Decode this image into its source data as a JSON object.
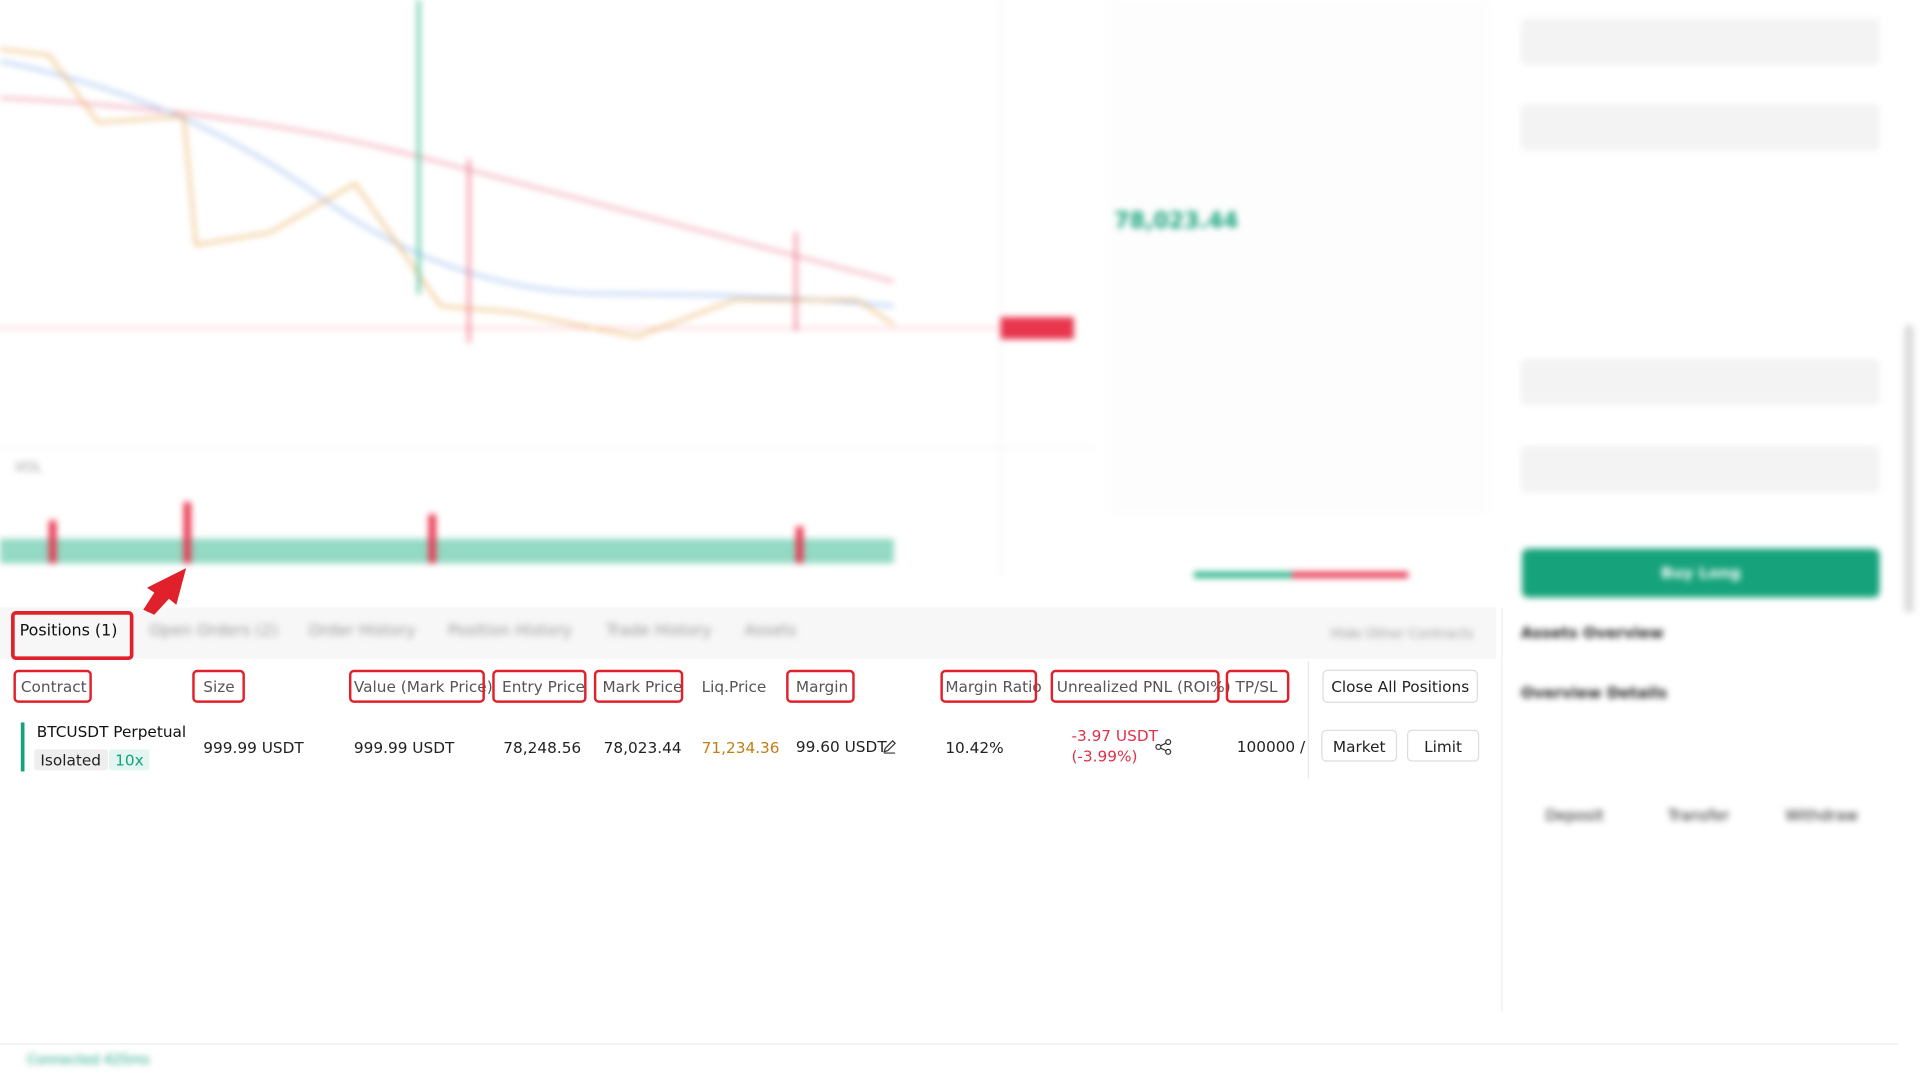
{
  "chart": {
    "volume_label": "VOL",
    "last_price": "78,023.44"
  },
  "order_form": {
    "buy_button": "Buy Long"
  },
  "assets_panel": {
    "tab": "Assets Overview",
    "title": "Overview Details",
    "buttons": [
      "Deposit",
      "Transfer",
      "Withdraw"
    ]
  },
  "tabs": [
    "Positions (1)",
    "Open Orders (2)",
    "Order History",
    "Position History",
    "Trade History",
    "Assets"
  ],
  "hide_other": "Hide Other Contracts",
  "columns": [
    "Contract",
    "Size",
    "Value (Mark Price)",
    "Entry Price",
    "Mark Price",
    "Liq.Price",
    "Margin",
    "Margin Ratio",
    "Unrealized PNL (ROI%)",
    "TP/SL"
  ],
  "close_all": "Close All Positions",
  "position": {
    "contract": "BTCUSDT Perpetual",
    "margin_mode": "Isolated",
    "leverage": "10x",
    "size": "999.99 USDT",
    "value": "999.99 USDT",
    "entry_price": "78,248.56",
    "mark_price": "78,023.44",
    "liq_price": "71,234.36",
    "margin": "99.60 USDT",
    "margin_ratio": "10.42%",
    "pnl": "-3.97 USDT",
    "roi": "(-3.99%)",
    "tpsl": "100000 /",
    "actions": [
      "Market",
      "Limit"
    ]
  },
  "status_bar": {
    "connection": "Connected 425ms"
  }
}
